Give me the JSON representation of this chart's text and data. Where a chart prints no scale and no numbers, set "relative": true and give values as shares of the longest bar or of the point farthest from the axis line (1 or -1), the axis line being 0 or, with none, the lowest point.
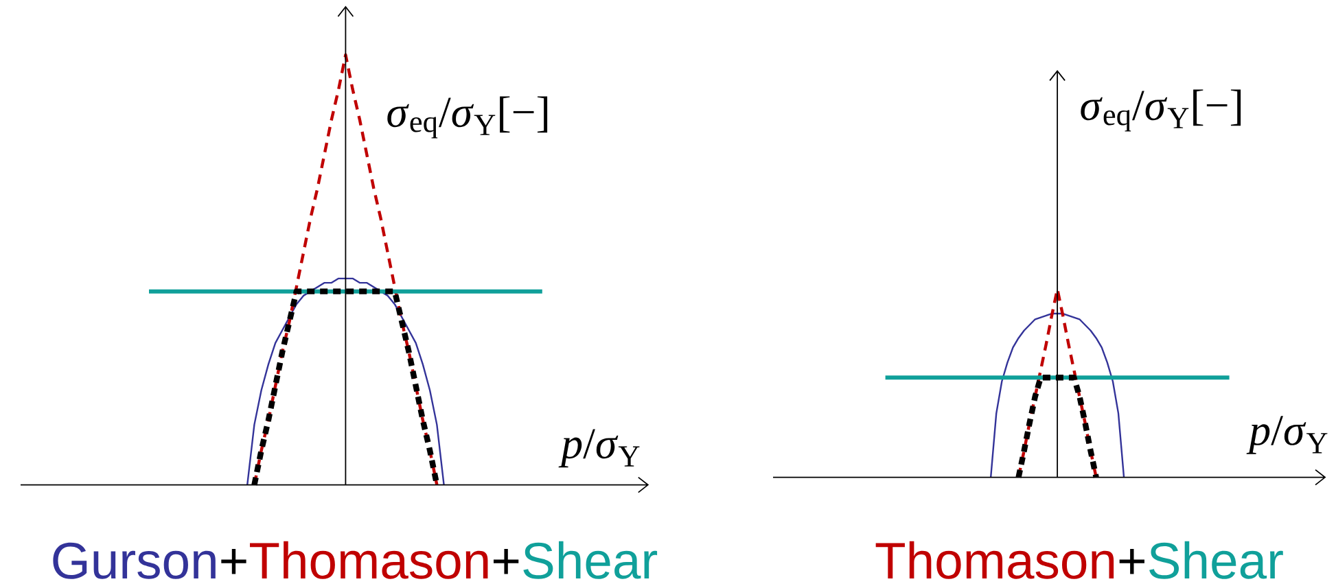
{
  "chart_data": [
    {
      "type": "line",
      "relative": true,
      "legend": "bottom",
      "xlabel": "*p*/*σ*$_{Y}$",
      "ylabel": "*σ*$_{eq}$/*σ*$_{Y}$[−]",
      "annotations": [
        "+",
        "+"
      ],
      "categories": [
        null,
        null,
        null,
        null,
        null,
        null,
        null,
        null,
        null,
        null,
        null,
        null,
        null,
        null,
        null,
        null,
        null,
        null,
        null,
        null,
        null,
        null,
        null,
        null,
        null,
        null,
        null,
        null,
        null,
        null,
        null,
        null,
        null,
        null,
        null,
        null,
        null,
        null,
        null,
        null,
        null,
        null,
        null,
        null,
        null,
        null,
        null,
        null,
        null,
        null,
        null,
        null,
        null,
        null,
        null,
        null,
        null
      ],
      "series": [
        {
          "name": "Gurson",
          "color": "#333399",
          "line_style": "solid",
          "values": [
            null,
            null,
            null,
            null,
            null,
            null,
            null,
            null,
            null,
            null,
            null,
            null,
            null,
            null,
            0,
            0.14,
            0.22,
            0.28,
            0.33,
            0.36,
            0.39,
            0.42,
            0.44,
            0.45,
            0.46,
            0.47,
            0.47,
            0.48,
            0.48,
            0.48,
            0.47,
            0.47,
            0.46,
            0.45,
            0.44,
            0.42,
            0.39,
            0.36,
            0.33,
            0.28,
            0.22,
            0.14,
            0,
            null,
            null,
            null,
            null,
            null,
            null,
            null,
            null,
            null,
            null,
            null,
            null,
            null,
            null
          ]
        },
        {
          "name": "Thomason",
          "color": "#c00000",
          "line_style": "dashed",
          "values": [
            null,
            null,
            null,
            null,
            null,
            null,
            null,
            null,
            null,
            null,
            null,
            null,
            null,
            null,
            null,
            0,
            0.08,
            0.15,
            0.23,
            0.31,
            0.38,
            0.46,
            0.54,
            0.62,
            0.69,
            0.77,
            0.85,
            0.92,
            1,
            0.92,
            0.85,
            0.77,
            0.69,
            0.62,
            0.54,
            0.46,
            0.38,
            0.31,
            0.23,
            0.15,
            0.08,
            0,
            null,
            null,
            null,
            null,
            null,
            null,
            null,
            null,
            null,
            null,
            null,
            null,
            null,
            null,
            null
          ]
        },
        {
          "name": "Shear",
          "color": "#10a09a",
          "line_style": "solid",
          "values": [
            0.45,
            0.45,
            0.45,
            0.45,
            0.45,
            0.45,
            0.45,
            0.45,
            0.45,
            0.45,
            0.45,
            0.45,
            0.45,
            0.45,
            0.45,
            0.45,
            0.45,
            0.45,
            0.45,
            0.45,
            0.45,
            0.45,
            0.45,
            0.45,
            0.45,
            0.45,
            0.45,
            0.45,
            0.45,
            0.45,
            0.45,
            0.45,
            0.45,
            0.45,
            0.45,
            0.45,
            0.45,
            0.45,
            0.45,
            0.45,
            0.45,
            0.45,
            0.45,
            0.45,
            0.45,
            0.45,
            0.45,
            0.45,
            0.45,
            0.45,
            0.45,
            0.45,
            0.45,
            0.45,
            0.45,
            0.45,
            0.45
          ]
        },
        {
          "color": "#000000",
          "line_style": "dashed",
          "values": [
            null,
            null,
            null,
            null,
            null,
            null,
            null,
            null,
            null,
            null,
            null,
            null,
            null,
            null,
            null,
            0,
            0.08,
            0.15,
            0.23,
            0.31,
            0.38,
            0.45,
            0.45,
            0.45,
            0.45,
            0.45,
            0.45,
            0.45,
            0.45,
            0.45,
            0.45,
            0.45,
            0.45,
            0.45,
            0.45,
            0.45,
            0.38,
            0.31,
            0.23,
            0.15,
            0.08,
            0,
            null,
            null,
            null,
            null,
            null,
            null,
            null,
            null,
            null,
            null,
            null,
            null,
            null,
            null,
            null
          ]
        }
      ]
    },
    {
      "type": "line",
      "relative": true,
      "legend": "bottom",
      "xlabel": "*p*/*σ*$_{Y}$",
      "ylabel": "*σ*$_{eq}$/*σ*$_{Y}$[−]",
      "annotations": [
        "+"
      ],
      "categories": [
        null,
        null,
        null,
        null,
        null,
        null,
        null,
        null,
        null,
        null,
        null,
        null,
        null,
        null,
        null,
        null,
        null,
        null,
        null,
        null,
        null,
        null,
        null,
        null,
        null,
        null,
        null,
        null,
        null,
        null,
        null,
        null,
        null,
        null,
        null,
        null,
        null,
        null,
        null,
        null,
        null,
        null,
        null,
        null,
        null,
        null,
        null,
        null,
        null,
        null,
        null,
        null,
        null,
        null,
        null,
        null,
        null,
        null,
        null,
        null,
        null,
        null,
        null
      ],
      "series": [
        {
          "color": "#333399",
          "line_style": "solid",
          "values": [
            null,
            null,
            null,
            null,
            null,
            null,
            null,
            null,
            null,
            null,
            null,
            null,
            null,
            null,
            null,
            null,
            null,
            null,
            null,
            0,
            0.34,
            0.51,
            0.61,
            0.69,
            0.74,
            0.78,
            0.81,
            0.84,
            0.85,
            0.86,
            0.87,
            0.87,
            0.87,
            0.86,
            0.85,
            0.84,
            0.81,
            0.78,
            0.74,
            0.69,
            0.61,
            0.51,
            0.34,
            0,
            null,
            null,
            null,
            null,
            null,
            null,
            null,
            null,
            null,
            null,
            null,
            null,
            null,
            null,
            null,
            null,
            null,
            null,
            null
          ]
        },
        {
          "name": "Thomason",
          "color": "#c00000",
          "line_style": "dashed",
          "values": [
            null,
            null,
            null,
            null,
            null,
            null,
            null,
            null,
            null,
            null,
            null,
            null,
            null,
            null,
            null,
            null,
            null,
            null,
            null,
            null,
            null,
            null,
            null,
            null,
            0,
            0.14,
            0.29,
            0.43,
            0.57,
            0.71,
            0.86,
            1,
            0.86,
            0.71,
            0.57,
            0.43,
            0.29,
            0.14,
            0,
            null,
            null,
            null,
            null,
            null,
            null,
            null,
            null,
            null,
            null,
            null,
            null,
            null,
            null,
            null,
            null,
            null,
            null,
            null,
            null,
            null,
            null,
            null,
            null
          ]
        },
        {
          "name": "Shear",
          "color": "#10a09a",
          "line_style": "solid",
          "values": [
            0.53,
            0.53,
            0.53,
            0.53,
            0.53,
            0.53,
            0.53,
            0.53,
            0.53,
            0.53,
            0.53,
            0.53,
            0.53,
            0.53,
            0.53,
            0.53,
            0.53,
            0.53,
            0.53,
            0.53,
            0.53,
            0.53,
            0.53,
            0.53,
            0.53,
            0.53,
            0.53,
            0.53,
            0.53,
            0.53,
            0.53,
            0.53,
            0.53,
            0.53,
            0.53,
            0.53,
            0.53,
            0.53,
            0.53,
            0.53,
            0.53,
            0.53,
            0.53,
            0.53,
            0.53,
            0.53,
            0.53,
            0.53,
            0.53,
            0.53,
            0.53,
            0.53,
            0.53,
            0.53,
            0.53,
            0.53,
            0.53,
            0.53,
            0.53,
            0.53,
            0.53,
            0.53,
            0.53
          ]
        },
        {
          "color": "#000000",
          "line_style": "dashed",
          "values": [
            null,
            null,
            null,
            null,
            null,
            null,
            null,
            null,
            null,
            null,
            null,
            null,
            null,
            null,
            null,
            null,
            null,
            null,
            null,
            null,
            null,
            null,
            null,
            null,
            0,
            0.14,
            0.29,
            0.43,
            0.53,
            0.53,
            0.53,
            0.53,
            0.53,
            0.53,
            0.53,
            0.43,
            0.29,
            0.14,
            0,
            null,
            null,
            null,
            null,
            null,
            null,
            null,
            null,
            null,
            null,
            null,
            null,
            null,
            null,
            null,
            null,
            null,
            null,
            null,
            null,
            null,
            null,
            null,
            null
          ]
        }
      ]
    }
  ]
}
